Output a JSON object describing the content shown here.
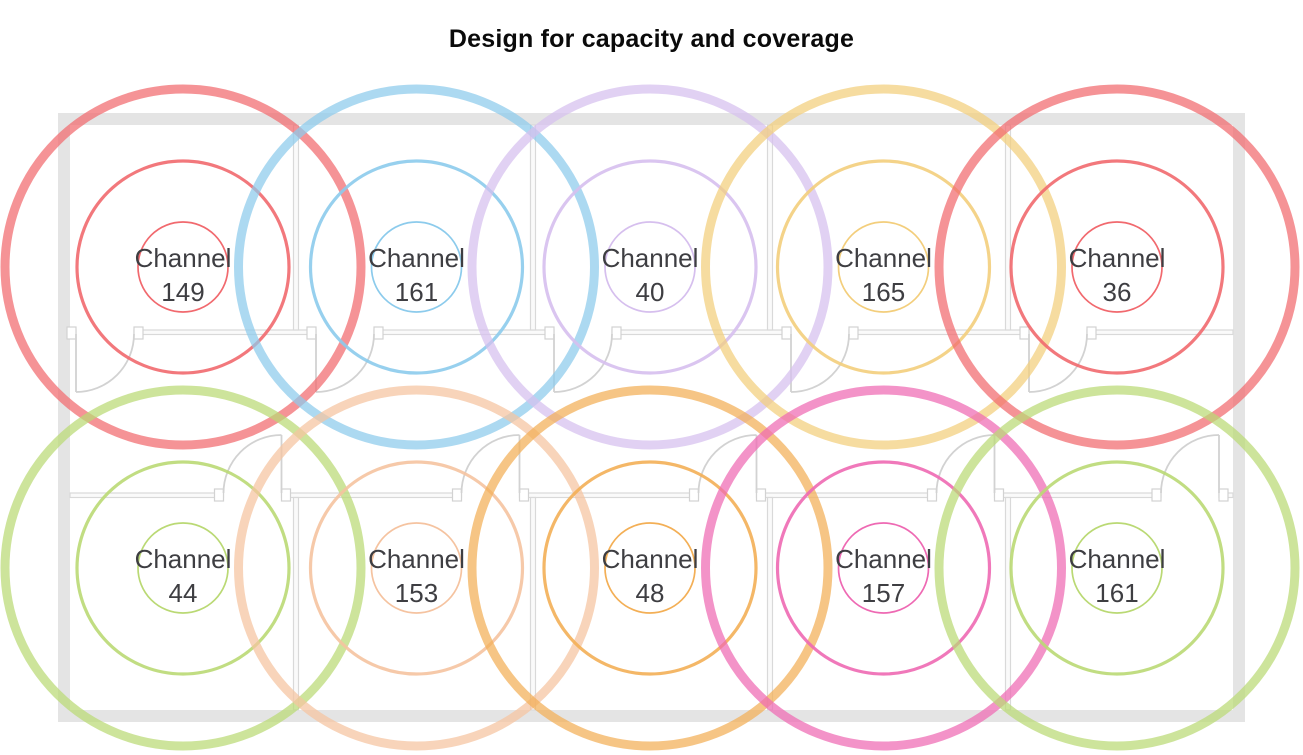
{
  "title": "Design for capacity and coverage",
  "diagram": {
    "type": "wifi-coverage-floorplan",
    "rows": 2,
    "cols": 5,
    "aps": [
      {
        "label": "Channel",
        "channel": "149",
        "color": "#F1696E",
        "row": 0,
        "col": 0
      },
      {
        "label": "Channel",
        "channel": "161",
        "color": "#8CCBEC",
        "row": 0,
        "col": 1
      },
      {
        "label": "Channel",
        "channel": "40",
        "color": "#D6BFEE",
        "row": 0,
        "col": 2
      },
      {
        "label": "Channel",
        "channel": "165",
        "color": "#F3CE7C",
        "row": 0,
        "col": 3
      },
      {
        "label": "Channel",
        "channel": "36",
        "color": "#F1696E",
        "row": 0,
        "col": 4
      },
      {
        "label": "Channel",
        "channel": "44",
        "color": "#BAD974",
        "row": 1,
        "col": 0
      },
      {
        "label": "Channel",
        "channel": "153",
        "color": "#F5C3A0",
        "row": 1,
        "col": 1
      },
      {
        "label": "Channel",
        "channel": "48",
        "color": "#F3AF56",
        "row": 1,
        "col": 2
      },
      {
        "label": "Channel",
        "channel": "157",
        "color": "#EE69B3",
        "row": 1,
        "col": 3
      },
      {
        "label": "Channel",
        "channel": "161",
        "color": "#BAD974",
        "row": 1,
        "col": 4
      }
    ],
    "rings": [
      {
        "radius": 45,
        "stroke_width": 1.7,
        "opacity": 1
      },
      {
        "radius": 106,
        "stroke_width": 3.2,
        "opacity": 0.9
      },
      {
        "radius": 178,
        "stroke_width": 9,
        "opacity": 0.72
      }
    ]
  },
  "colors": {
    "background": "#ffffff",
    "wall": "#e4e4e4",
    "wall_fill": "#fafafa",
    "wall_outline": "#d9d9d9",
    "door": "#d2d2d2",
    "label_text": "#3e3e42",
    "title_text": "#0a0a0a"
  }
}
